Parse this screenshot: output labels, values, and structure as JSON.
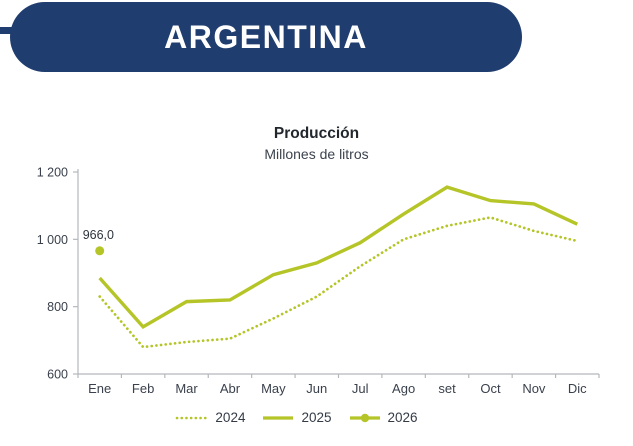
{
  "header": {
    "title": "ARGENTINA"
  },
  "chart": {
    "title": "Producción",
    "subtitle": "Millones de litros"
  },
  "colors": {
    "banner": "#1f3d6e",
    "line": "#b5c527",
    "text": "#3a414c",
    "label": "#2e343d",
    "axis": "#b4b7bc"
  },
  "chart_data": {
    "type": "line",
    "title": "Producción",
    "subtitle": "Millones de litros",
    "categories": [
      "Ene",
      "Feb",
      "Mar",
      "Abr",
      "May",
      "Jun",
      "Jul",
      "Ago",
      "set",
      "Oct",
      "Nov",
      "Dic"
    ],
    "series": [
      {
        "name": "2024",
        "style": "dotted",
        "values": [
          830,
          680,
          695,
          705,
          765,
          830,
          920,
          1000,
          1040,
          1065,
          1025,
          995
        ]
      },
      {
        "name": "2025",
        "style": "solid",
        "values": [
          885,
          740,
          815,
          820,
          895,
          930,
          990,
          1075,
          1155,
          1115,
          1105,
          1045
        ]
      },
      {
        "name": "2026",
        "style": "solid-marker",
        "values": [
          966,
          null,
          null,
          null,
          null,
          null,
          null,
          null,
          null,
          null,
          null,
          null
        ],
        "data_label": "966,0"
      }
    ],
    "ylim": [
      600,
      1200
    ],
    "yticks": [
      600,
      800,
      1000,
      1200
    ],
    "ytick_labels": [
      "600",
      "800",
      "1 000",
      "1 200"
    ],
    "xlabel": "",
    "ylabel": "",
    "grid": false,
    "legend_position": "bottom",
    "line_color": "#b5c527"
  }
}
